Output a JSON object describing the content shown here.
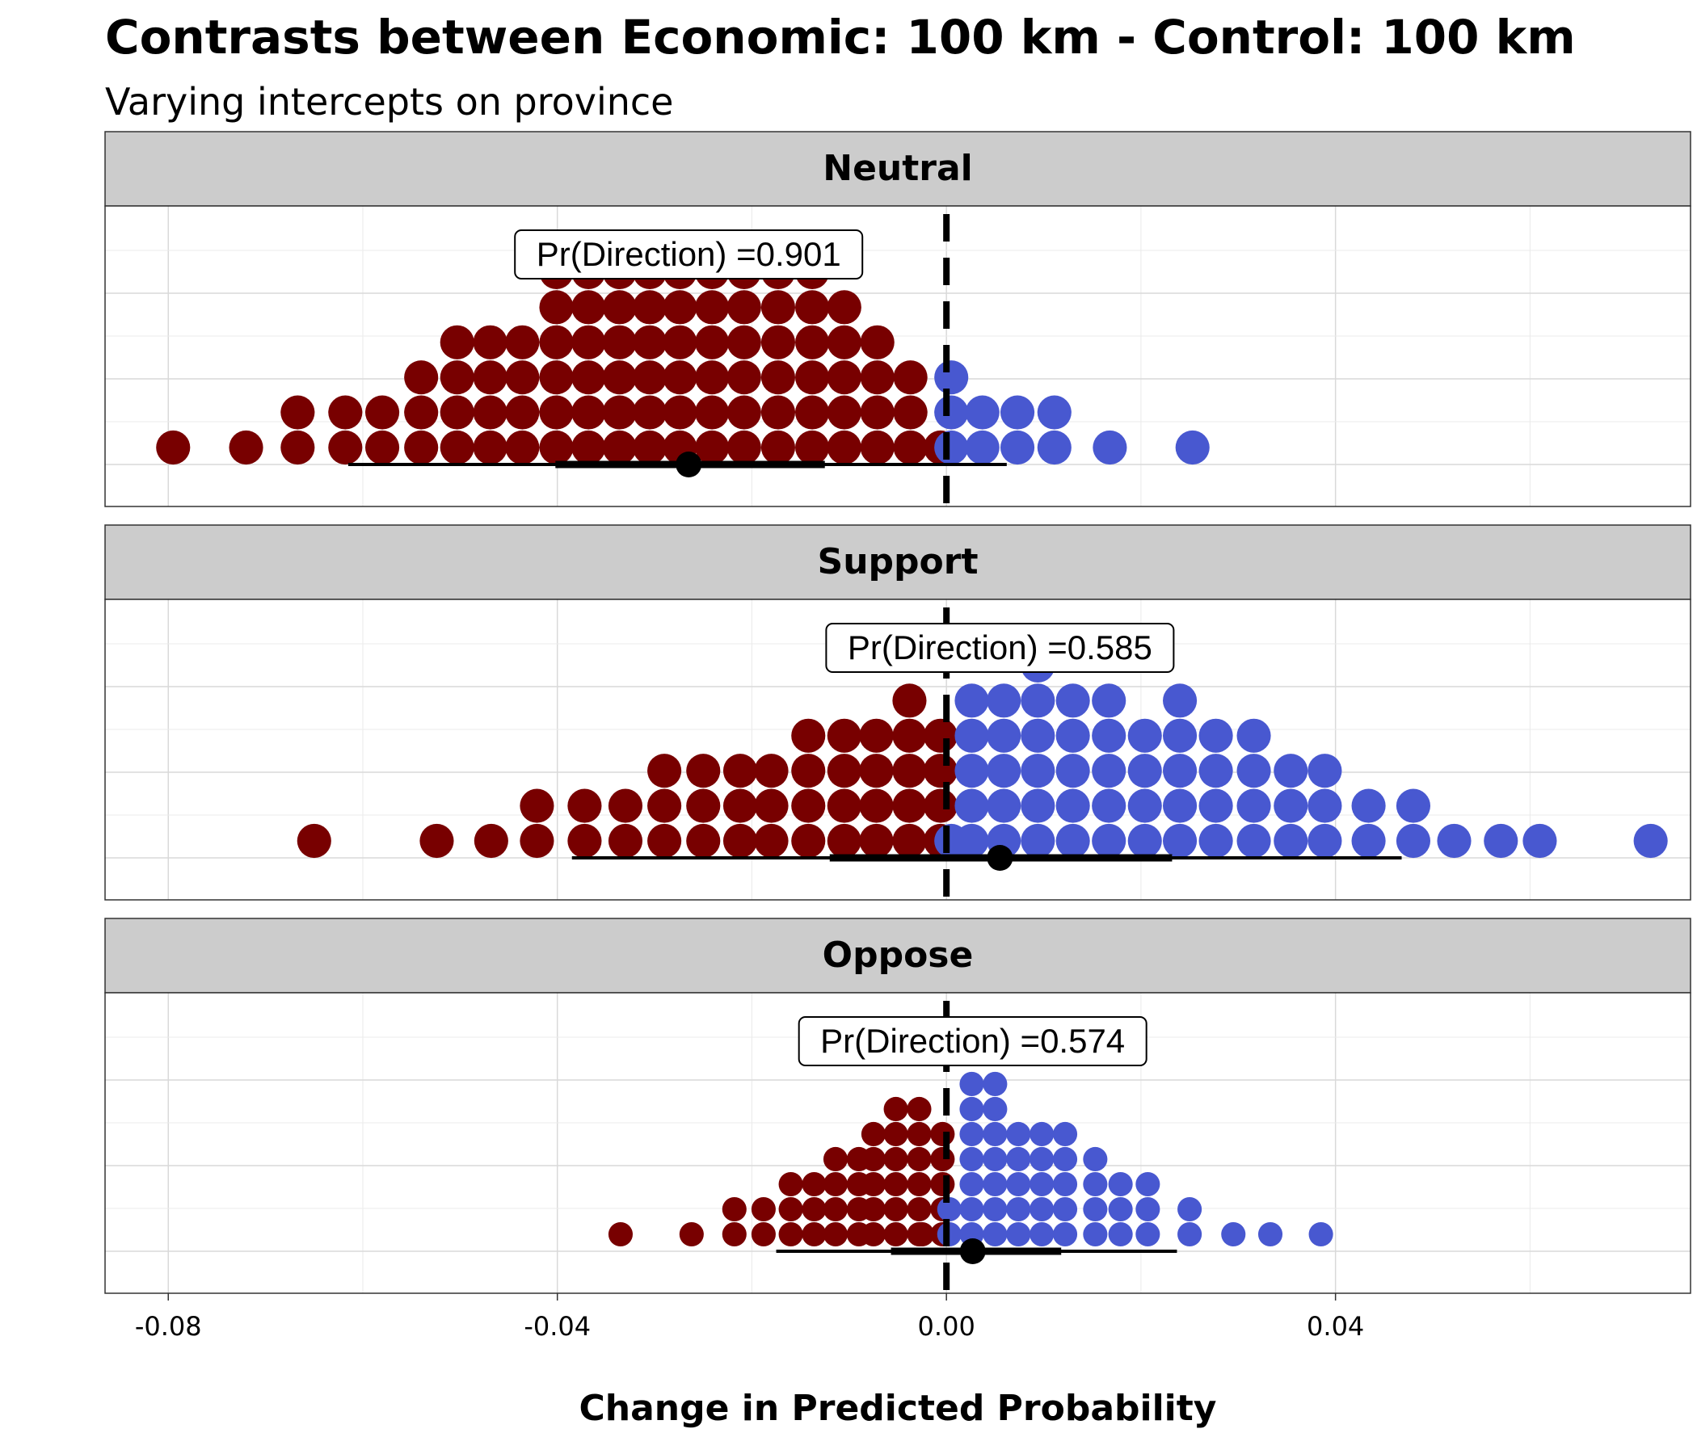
{
  "chart_data": {
    "type": "dotplot",
    "title": "Contrasts between Economic: 100 km - Control: 100 km",
    "subtitle": "Varying intercepts on province",
    "xlabel": "Change in Predicted Probability",
    "xlim": [
      -0.0865,
      0.0765
    ],
    "x_ticks": [
      -0.08,
      -0.04,
      0.0,
      0.04
    ],
    "x_tick_labels": [
      "-0.08",
      "-0.04",
      "0.00",
      "0.04"
    ],
    "reference_line_x": 0.0,
    "colors": {
      "negative": "#780000",
      "positive": "#4858D0",
      "strip_bg": "#CCCCCC",
      "grid": "#D9D9D9"
    },
    "panels": [
      {
        "label": "Neutral",
        "annotation": "Pr(Direction) =0.901",
        "annotation_x": -0.0265,
        "point_estimate": -0.0265,
        "interval_66": [
          -0.0402,
          -0.0125
        ],
        "interval_95": [
          -0.0615,
          0.0062
        ],
        "dot_radius_x": 0.00175,
        "columns": [
          {
            "x": -0.0795,
            "n": 1
          },
          {
            "x": -0.072,
            "n": 1
          },
          {
            "x": -0.0667,
            "n": 2
          },
          {
            "x": -0.0618,
            "n": 2
          },
          {
            "x": -0.058,
            "n": 2
          },
          {
            "x": -0.054,
            "n": 3
          },
          {
            "x": -0.0503,
            "n": 4
          },
          {
            "x": -0.0469,
            "n": 4
          },
          {
            "x": -0.0436,
            "n": 4
          },
          {
            "x": -0.0401,
            "n": 6
          },
          {
            "x": -0.0368,
            "n": 6
          },
          {
            "x": -0.0336,
            "n": 6
          },
          {
            "x": -0.0305,
            "n": 6
          },
          {
            "x": -0.0274,
            "n": 6
          },
          {
            "x": -0.0241,
            "n": 6
          },
          {
            "x": -0.0208,
            "n": 6
          },
          {
            "x": -0.0173,
            "n": 6
          },
          {
            "x": -0.0138,
            "n": 6
          },
          {
            "x": -0.0105,
            "n": 5
          },
          {
            "x": -0.0071,
            "n": 4
          },
          {
            "x": -0.0037,
            "n": 3
          },
          {
            "x": -0.0006,
            "n": 1
          },
          {
            "x": 0.0005,
            "n": 3
          },
          {
            "x": 0.0037,
            "n": 2
          },
          {
            "x": 0.0073,
            "n": 2
          },
          {
            "x": 0.0111,
            "n": 2
          },
          {
            "x": 0.0168,
            "n": 1
          },
          {
            "x": 0.0253,
            "n": 1
          }
        ]
      },
      {
        "label": "Support",
        "annotation": "Pr(Direction) =0.585",
        "annotation_x": 0.0055,
        "point_estimate": 0.0055,
        "interval_66": [
          -0.012,
          0.0232
        ],
        "interval_95": [
          -0.0385,
          0.0468
        ],
        "dot_radius_x": 0.00175,
        "columns": [
          {
            "x": -0.065,
            "n": 1
          },
          {
            "x": -0.0524,
            "n": 1
          },
          {
            "x": -0.0468,
            "n": 1
          },
          {
            "x": -0.0421,
            "n": 2
          },
          {
            "x": -0.0372,
            "n": 2
          },
          {
            "x": -0.033,
            "n": 2
          },
          {
            "x": -0.029,
            "n": 3
          },
          {
            "x": -0.025,
            "n": 3
          },
          {
            "x": -0.0212,
            "n": 3
          },
          {
            "x": -0.018,
            "n": 3
          },
          {
            "x": -0.0142,
            "n": 4
          },
          {
            "x": -0.0105,
            "n": 4
          },
          {
            "x": -0.0072,
            "n": 4
          },
          {
            "x": -0.0038,
            "n": 5
          },
          {
            "x": -0.0006,
            "n": 4
          },
          {
            "x": 0.0005,
            "n": 1
          },
          {
            "x": 0.0026,
            "n": 5
          },
          {
            "x": 0.0059,
            "n": 5
          },
          {
            "x": 0.0094,
            "n": 6
          },
          {
            "x": 0.013,
            "n": 5
          },
          {
            "x": 0.0167,
            "n": 5
          },
          {
            "x": 0.0204,
            "n": 4
          },
          {
            "x": 0.024,
            "n": 5
          },
          {
            "x": 0.0277,
            "n": 4
          },
          {
            "x": 0.0316,
            "n": 4
          },
          {
            "x": 0.0354,
            "n": 3
          },
          {
            "x": 0.0389,
            "n": 3
          },
          {
            "x": 0.0434,
            "n": 2
          },
          {
            "x": 0.048,
            "n": 2
          },
          {
            "x": 0.0522,
            "n": 1
          },
          {
            "x": 0.057,
            "n": 1
          },
          {
            "x": 0.061,
            "n": 1
          },
          {
            "x": 0.0724,
            "n": 1
          }
        ]
      },
      {
        "label": "Oppose",
        "annotation": "Pr(Direction) =0.574",
        "annotation_x": 0.0027,
        "point_estimate": 0.0027,
        "interval_66": [
          -0.0057,
          0.0118
        ],
        "interval_95": [
          -0.0175,
          0.0237
        ],
        "dot_radius_x": 0.00125,
        "columns": [
          {
            "x": -0.0335,
            "n": 1
          },
          {
            "x": -0.0262,
            "n": 1
          },
          {
            "x": -0.0218,
            "n": 2
          },
          {
            "x": -0.0188,
            "n": 2
          },
          {
            "x": -0.016,
            "n": 3
          },
          {
            "x": -0.0136,
            "n": 3
          },
          {
            "x": -0.0114,
            "n": 4
          },
          {
            "x": -0.009,
            "n": 4
          },
          {
            "x": -0.0075,
            "n": 5
          },
          {
            "x": -0.0052,
            "n": 6
          },
          {
            "x": -0.0028,
            "n": 6
          },
          {
            "x": -0.0025,
            "n": 1
          },
          {
            "x": -0.0004,
            "n": 5
          },
          {
            "x": 0.0003,
            "n": 2
          },
          {
            "x": 0.0026,
            "n": 7
          },
          {
            "x": 0.005,
            "n": 7
          },
          {
            "x": 0.0074,
            "n": 5
          },
          {
            "x": 0.0098,
            "n": 5
          },
          {
            "x": 0.0122,
            "n": 5
          },
          {
            "x": 0.0153,
            "n": 4
          },
          {
            "x": 0.0179,
            "n": 3
          },
          {
            "x": 0.0207,
            "n": 3
          },
          {
            "x": 0.025,
            "n": 2
          },
          {
            "x": 0.0295,
            "n": 1
          },
          {
            "x": 0.0333,
            "n": 1
          },
          {
            "x": 0.0385,
            "n": 1
          }
        ]
      }
    ]
  }
}
